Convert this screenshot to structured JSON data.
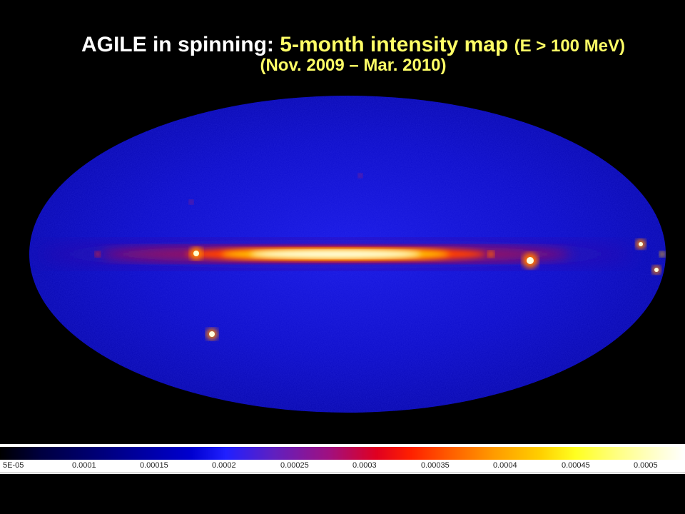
{
  "title": {
    "part1": "AGILE in spinning: ",
    "part2": "5-month intensity map ",
    "part3": "(E > 100 MeV)",
    "line2": "(Nov. 2009 – Mar. 2010)"
  },
  "colorbar": {
    "ticks": [
      "5E-05",
      "0.0001",
      "0.00015",
      "0.0002",
      "0.00025",
      "0.0003",
      "0.00035",
      "0.0004",
      "0.00045",
      "0.0005"
    ],
    "colors": [
      "#000000",
      "#0000d0",
      "#e00020",
      "#ff9a00",
      "#ffff20",
      "#ffffff"
    ]
  },
  "map": {
    "background": "#0000c8",
    "plane_color": "#ffffe0",
    "source_color": "#ffffff"
  }
}
